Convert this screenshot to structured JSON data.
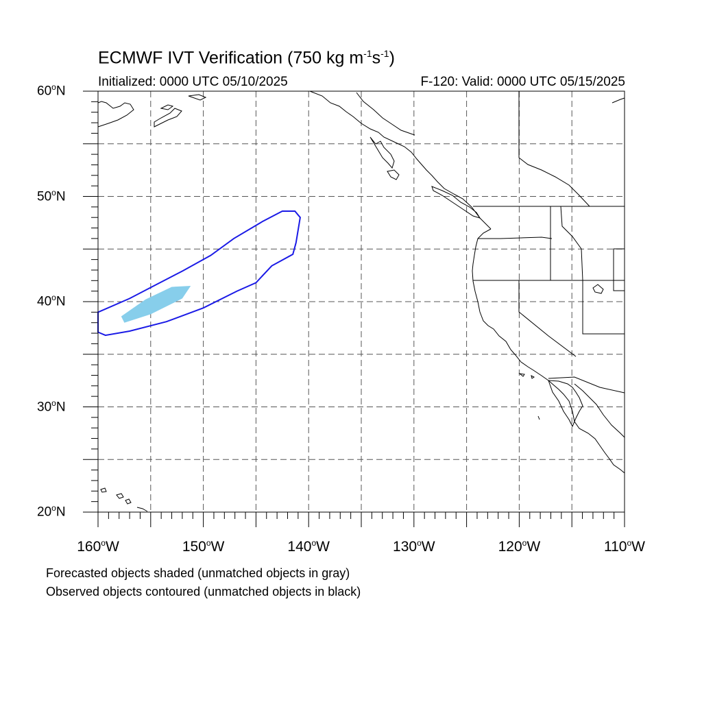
{
  "title": {
    "main": "ECMWF IVT Verification (750 kg m",
    "exp1": "-1",
    "mid": "s",
    "exp2": "-1",
    "end": ")"
  },
  "subtitle_left": "Initialized: 0000 UTC 05/10/2025",
  "subtitle_right": "F-120: Valid: 0000 UTC 05/15/2025",
  "lat_labels": [
    {
      "num": "60",
      "suffix": "N"
    },
    {
      "num": "50",
      "suffix": "N"
    },
    {
      "num": "40",
      "suffix": "N"
    },
    {
      "num": "30",
      "suffix": "N"
    },
    {
      "num": "20",
      "suffix": "N"
    }
  ],
  "lon_labels": [
    {
      "num": "160",
      "suffix": "W"
    },
    {
      "num": "150",
      "suffix": "W"
    },
    {
      "num": "140",
      "suffix": "W"
    },
    {
      "num": "130",
      "suffix": "W"
    },
    {
      "num": "120",
      "suffix": "W"
    },
    {
      "num": "110",
      "suffix": "W"
    }
  ],
  "notes": [
    "Forecasted objects shaded (unmatched objects in gray)",
    "Observed objects contoured (unmatched objects in black)"
  ],
  "colors": {
    "forecast_fill": "#87ceeb",
    "observed_contour": "#1a1ae6",
    "grid": "#555555",
    "coast": "#000000"
  },
  "map_extent": {
    "lon_min": -160,
    "lon_max": -110,
    "lat_min": 20,
    "lat_max": 60
  },
  "forecast_object": [
    [
      -157.5,
      38.0
    ],
    [
      -155,
      38.8
    ],
    [
      -152,
      40.3
    ],
    [
      -151.2,
      41.5
    ],
    [
      -153,
      41.4
    ],
    [
      -155.5,
      40.2
    ],
    [
      -157.8,
      38.6
    ]
  ],
  "observed_object": [
    [
      -160,
      37.1
    ],
    [
      -159.3,
      36.8
    ],
    [
      -157,
      37.2
    ],
    [
      -153.5,
      38.1
    ],
    [
      -150,
      39.4
    ],
    [
      -146.8,
      41.0
    ],
    [
      -145,
      41.8
    ],
    [
      -143.5,
      43.4
    ],
    [
      -141.5,
      44.5
    ],
    [
      -141.2,
      45.6
    ],
    [
      -140.8,
      48.0
    ],
    [
      -141.3,
      48.6
    ],
    [
      -142.5,
      48.6
    ],
    [
      -144.4,
      47.6
    ],
    [
      -147.1,
      46.0
    ],
    [
      -149.3,
      44.4
    ],
    [
      -152,
      42.9
    ],
    [
      -154.5,
      41.6
    ],
    [
      -157,
      40.3
    ],
    [
      -160,
      39.0
    ]
  ]
}
